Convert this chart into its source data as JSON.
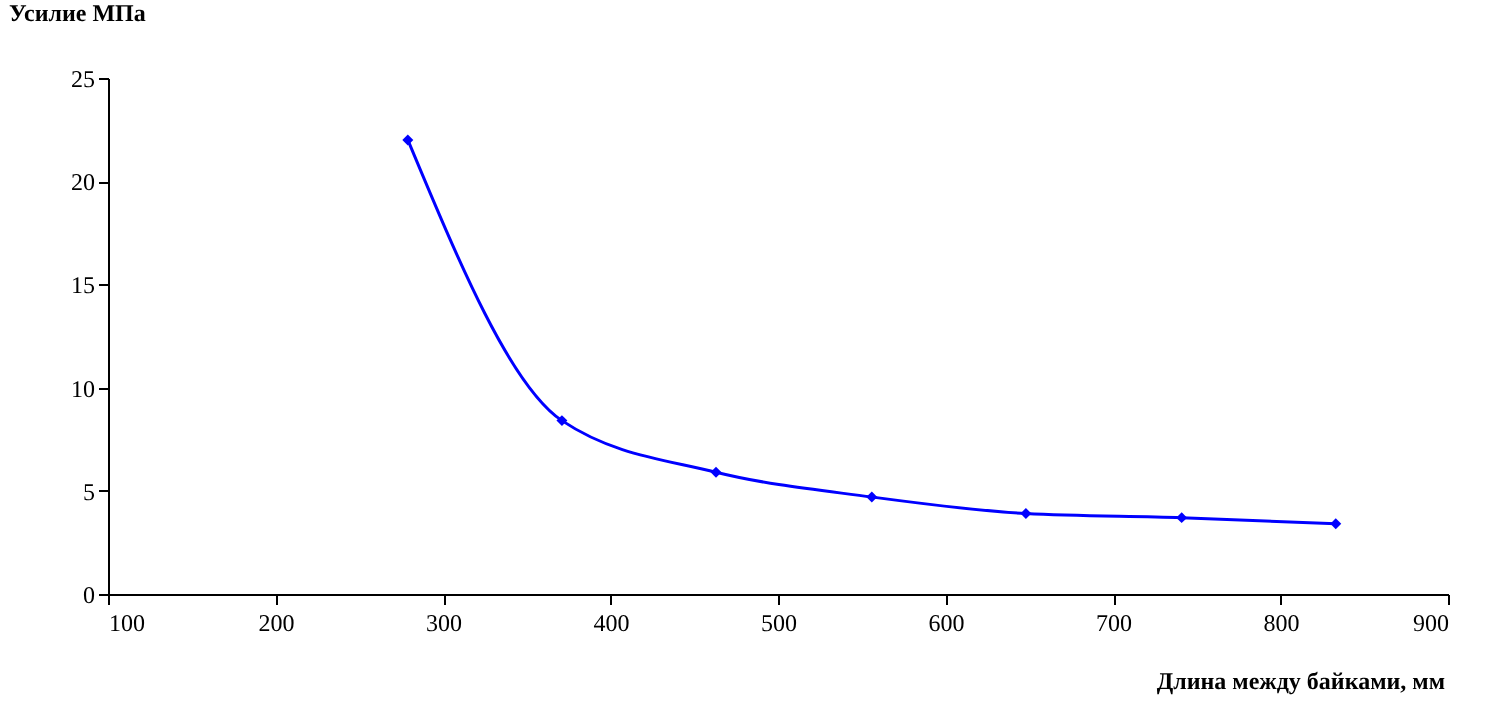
{
  "chart_data": {
    "type": "line",
    "xlabel": "Длина между байками, мм",
    "ylabel": "Усилие МПа",
    "x": [
      279,
      371,
      463,
      556,
      648,
      741,
      833
    ],
    "series": [
      {
        "color": "#0000ff",
        "values": [
          22,
          8.4,
          5.9,
          4.7,
          3.9,
          3.7,
          3.4
        ]
      }
    ],
    "xlim": [
      100,
      900
    ],
    "xticks": [
      100,
      200,
      300,
      400,
      500,
      600,
      700,
      800,
      900
    ],
    "ylim": [
      0,
      25
    ],
    "yticks": [
      0,
      5,
      10,
      15,
      20,
      25
    ],
    "grid": false,
    "marker": "diamond",
    "line_style": "solid"
  }
}
